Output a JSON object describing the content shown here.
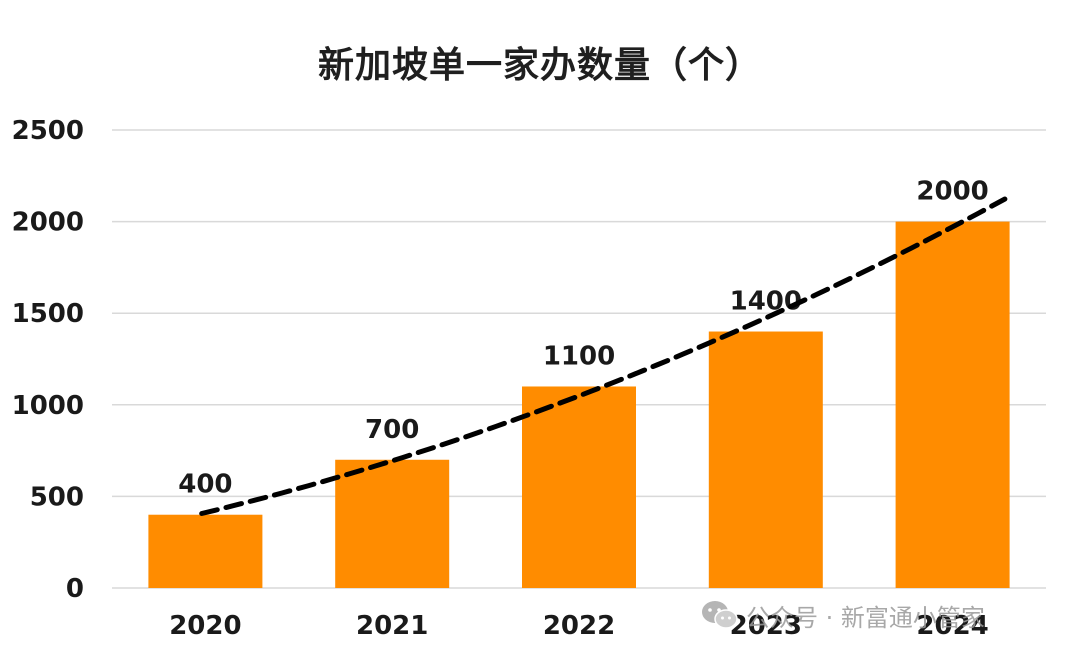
{
  "chart_data": {
    "type": "bar",
    "title": "新加坡单一家办数量（个）",
    "categories": [
      "2020",
      "2021",
      "2022",
      "2023",
      "2024"
    ],
    "values": [
      400,
      700,
      1100,
      1400,
      2000
    ],
    "data_labels": [
      "400",
      "700",
      "1100",
      "1400",
      "2000"
    ],
    "ylim": [
      0,
      2500
    ],
    "yticks": [
      0,
      500,
      1000,
      1500,
      2000,
      2500
    ],
    "grid": true,
    "bar_color": "#FF8C00",
    "trendline": {
      "style": "dashed",
      "color": "#000000",
      "type": "polynomial"
    }
  },
  "watermark": {
    "text": "公众号 · 新富通小管家",
    "icon": "wechat-icon"
  }
}
